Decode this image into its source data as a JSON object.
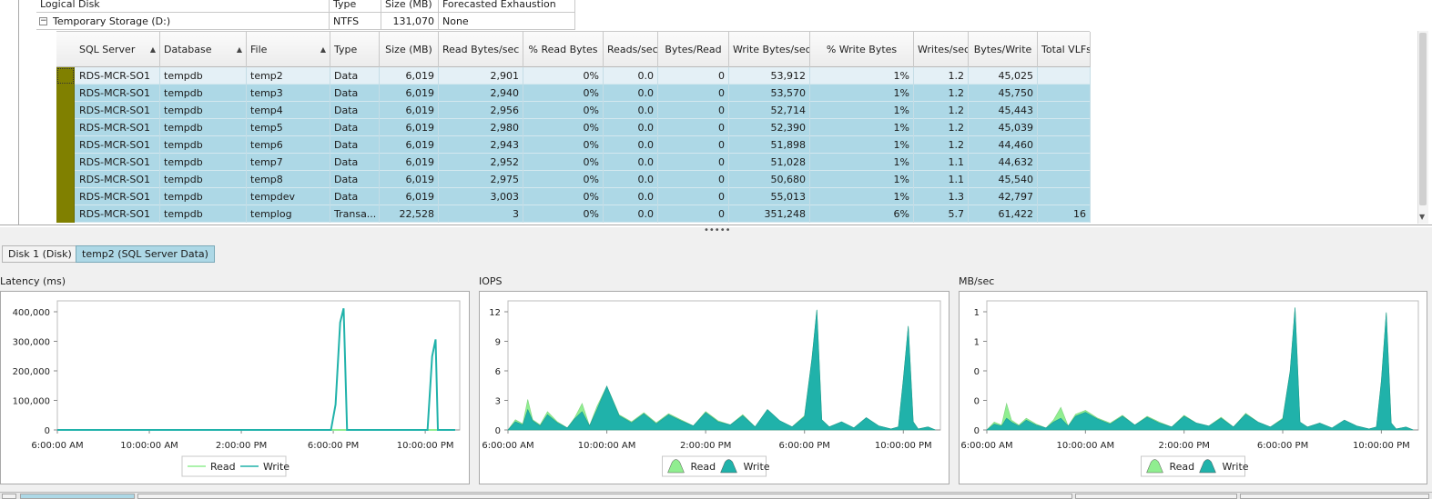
{
  "outer_grid": {
    "headers": [
      "Logical Disk",
      "Type",
      "Size (MB)",
      "Forecasted Exhaustion"
    ],
    "group_row": {
      "expander": "⊟",
      "name": "Temporary Storage (D:)",
      "type": "NTFS",
      "size": "131,070",
      "forecast": "None"
    }
  },
  "inner_grid": {
    "headers": [
      "SQL Server",
      "Database",
      "File",
      "Type",
      "Size (MB)",
      "Read Bytes/sec",
      "% Read Bytes",
      "Reads/sec",
      "Bytes/Read",
      "Write Bytes/sec",
      "% Write Bytes",
      "Writes/sec",
      "Bytes/Write",
      "Total VLFs"
    ],
    "swatch_color": "#808000",
    "rows": [
      [
        "RDS-MCR-SO1",
        "tempdb",
        "temp2",
        "Data",
        "6,019",
        "2,901",
        "0%",
        "0.0",
        "0",
        "53,912",
        "1%",
        "1.2",
        "45,025",
        ""
      ],
      [
        "RDS-MCR-SO1",
        "tempdb",
        "temp3",
        "Data",
        "6,019",
        "2,940",
        "0%",
        "0.0",
        "0",
        "53,570",
        "1%",
        "1.2",
        "45,750",
        ""
      ],
      [
        "RDS-MCR-SO1",
        "tempdb",
        "temp4",
        "Data",
        "6,019",
        "2,956",
        "0%",
        "0.0",
        "0",
        "52,714",
        "1%",
        "1.2",
        "45,443",
        ""
      ],
      [
        "RDS-MCR-SO1",
        "tempdb",
        "temp5",
        "Data",
        "6,019",
        "2,980",
        "0%",
        "0.0",
        "0",
        "52,390",
        "1%",
        "1.2",
        "45,039",
        ""
      ],
      [
        "RDS-MCR-SO1",
        "tempdb",
        "temp6",
        "Data",
        "6,019",
        "2,943",
        "0%",
        "0.0",
        "0",
        "51,898",
        "1%",
        "1.2",
        "44,460",
        ""
      ],
      [
        "RDS-MCR-SO1",
        "tempdb",
        "temp7",
        "Data",
        "6,019",
        "2,952",
        "0%",
        "0.0",
        "0",
        "51,028",
        "1%",
        "1.1",
        "44,632",
        ""
      ],
      [
        "RDS-MCR-SO1",
        "tempdb",
        "temp8",
        "Data",
        "6,019",
        "2,975",
        "0%",
        "0.0",
        "0",
        "50,680",
        "1%",
        "1.1",
        "45,540",
        ""
      ],
      [
        "RDS-MCR-SO1",
        "tempdb",
        "tempdev",
        "Data",
        "6,019",
        "3,003",
        "0%",
        "0.0",
        "0",
        "55,013",
        "1%",
        "1.3",
        "42,797",
        ""
      ],
      [
        "RDS-MCR-SO1",
        "tempdb",
        "templog",
        "Transa...",
        "22,528",
        "3",
        "0%",
        "0.0",
        "0",
        "351,248",
        "6%",
        "5.7",
        "61,422",
        "16"
      ]
    ]
  },
  "splitter_grip": "•••••",
  "tabs": [
    {
      "label": "Disk 1 (Disk)",
      "active": false
    },
    {
      "label": "temp2 (SQL Server Data)",
      "active": true
    }
  ],
  "colors": {
    "selection": "#add8e6",
    "read_fill": "#90ee90",
    "write_fill": "#20b2aa",
    "write_line": "#20b2aa",
    "read_line": "#90ee90"
  },
  "chart_data": [
    {
      "type": "line",
      "title": "Latency (ms)",
      "x_ticks": [
        "6:00:00 AM",
        "10:00:00 AM",
        "2:00:00 PM",
        "6:00:00 PM",
        "10:00:00 PM"
      ],
      "y_ticks": [
        "0",
        "100,000",
        "200,000",
        "300,000",
        "400,000"
      ],
      "ylim": [
        0,
        450000
      ],
      "x_hours": [
        6,
        23.5
      ],
      "legend": [
        "Read",
        "Write"
      ],
      "series": [
        {
          "name": "Read",
          "x": [
            6,
            23.3
          ],
          "values": [
            0,
            0
          ]
        },
        {
          "name": "Write",
          "x": [
            6,
            17.9,
            18.1,
            18.3,
            18.45,
            18.6,
            18.75,
            22,
            22.1,
            22.3,
            22.45,
            22.55,
            22.7,
            23.3
          ],
          "values": [
            0,
            0,
            90000,
            380000,
            430000,
            0,
            0,
            0,
            0,
            260000,
            320000,
            0,
            0,
            0
          ]
        }
      ]
    },
    {
      "type": "area",
      "title": "IOPS",
      "x_ticks": [
        "6:00:00 AM",
        "10:00:00 AM",
        "2:00:00 PM",
        "6:00:00 PM",
        "10:00:00 PM"
      ],
      "y_ticks": [
        "0",
        "3",
        "6",
        "9",
        "12"
      ],
      "ylim": [
        0,
        12.5
      ],
      "x_hours": [
        6,
        23.5
      ],
      "legend": [
        "Read",
        "Write"
      ],
      "series": [
        {
          "name": "Read",
          "x": [
            6,
            6.3,
            6.6,
            6.8,
            7.0,
            7.3,
            7.6,
            8,
            8.4,
            8.7,
            9.0,
            9.3,
            9.6,
            10,
            10.5,
            11,
            11.5,
            12,
            12.5,
            13,
            13.5,
            14,
            14.5,
            15,
            15.5,
            16,
            16.5,
            17,
            17.5,
            18,
            18.3,
            18.5,
            18.7,
            19,
            19.5,
            20,
            20.5,
            21,
            21.5,
            21.8,
            22,
            22.2,
            22.4,
            22.6,
            23,
            23.3
          ],
          "values": [
            0,
            1.0,
            0.6,
            3.0,
            1.0,
            0.5,
            1.8,
            0.8,
            0.2,
            1.2,
            2.6,
            0.4,
            2.3,
            4.3,
            1.5,
            0.8,
            1.7,
            0.7,
            1.6,
            1.0,
            0.4,
            1.8,
            0.9,
            0.5,
            1.5,
            0.3,
            2.0,
            0.9,
            0.3,
            1.4,
            7.0,
            11.8,
            1.0,
            0.3,
            0.8,
            0.2,
            1.2,
            0.4,
            0.1,
            0.3,
            5.0,
            10.2,
            0.8,
            0.1,
            0.3,
            0
          ]
        },
        {
          "name": "Write",
          "x": [
            6,
            6.3,
            6.6,
            6.8,
            7.0,
            7.3,
            7.6,
            8,
            8.4,
            8.7,
            9.0,
            9.3,
            9.6,
            10,
            10.5,
            11,
            11.5,
            12,
            12.5,
            13,
            13.5,
            14,
            14.5,
            15,
            15.5,
            16,
            16.5,
            17,
            17.5,
            18,
            18.3,
            18.5,
            18.7,
            19,
            19.5,
            20,
            20.5,
            21,
            21.5,
            21.8,
            22,
            22.2,
            22.4,
            22.6,
            23,
            23.3
          ],
          "values": [
            0,
            0.8,
            0.5,
            2.0,
            0.9,
            0.4,
            1.5,
            0.7,
            0.2,
            1.1,
            1.8,
            0.4,
            2.0,
            4.3,
            1.4,
            0.7,
            1.6,
            0.6,
            1.5,
            0.9,
            0.4,
            1.7,
            0.8,
            0.5,
            1.4,
            0.3,
            2.0,
            0.9,
            0.3,
            1.3,
            7.0,
            11.8,
            1.0,
            0.3,
            0.8,
            0.2,
            1.2,
            0.4,
            0.1,
            0.3,
            5.0,
            10.2,
            0.8,
            0.1,
            0.3,
            0
          ]
        }
      ]
    },
    {
      "type": "area",
      "title": "MB/sec",
      "x_ticks": [
        "6:00:00 AM",
        "10:00:00 AM",
        "2:00:00 PM",
        "6:00:00 PM",
        "10:00:00 PM"
      ],
      "y_ticks": [
        "0",
        "0",
        "0",
        "1",
        "1"
      ],
      "ylim": [
        0,
        1.3
      ],
      "x_hours": [
        6,
        23.5
      ],
      "legend": [
        "Read",
        "Write"
      ],
      "series": [
        {
          "name": "Read",
          "x": [
            6,
            6.3,
            6.6,
            6.8,
            7.0,
            7.3,
            7.6,
            8,
            8.4,
            8.7,
            9.0,
            9.3,
            9.6,
            10,
            10.5,
            11,
            11.5,
            12,
            12.5,
            13,
            13.5,
            14,
            14.5,
            15,
            15.5,
            16,
            16.5,
            17,
            17.5,
            18,
            18.3,
            18.5,
            18.7,
            19,
            19.5,
            20,
            20.5,
            21,
            21.5,
            21.8,
            22,
            22.2,
            22.4,
            22.6,
            23,
            23.3
          ],
          "values": [
            0,
            0.08,
            0.05,
            0.27,
            0.1,
            0.05,
            0.12,
            0.06,
            0.02,
            0.1,
            0.23,
            0.04,
            0.16,
            0.2,
            0.12,
            0.07,
            0.15,
            0.05,
            0.14,
            0.08,
            0.03,
            0.15,
            0.07,
            0.04,
            0.13,
            0.03,
            0.17,
            0.08,
            0.03,
            0.12,
            0.6,
            1.25,
            0.08,
            0.03,
            0.07,
            0.02,
            0.1,
            0.04,
            0.01,
            0.03,
            0.5,
            1.2,
            0.07,
            0.01,
            0.03,
            0
          ]
        },
        {
          "name": "Write",
          "x": [
            6,
            6.3,
            6.6,
            6.8,
            7.0,
            7.3,
            7.6,
            8,
            8.4,
            8.7,
            9.0,
            9.3,
            9.6,
            10,
            10.5,
            11,
            11.5,
            12,
            12.5,
            13,
            13.5,
            14,
            14.5,
            15,
            15.5,
            16,
            16.5,
            17,
            17.5,
            18,
            18.3,
            18.5,
            18.7,
            19,
            19.5,
            20,
            20.5,
            21,
            21.5,
            21.8,
            22,
            22.2,
            22.4,
            22.6,
            23,
            23.3
          ],
          "values": [
            0,
            0.06,
            0.04,
            0.12,
            0.08,
            0.04,
            0.1,
            0.05,
            0.02,
            0.08,
            0.12,
            0.04,
            0.14,
            0.18,
            0.11,
            0.06,
            0.14,
            0.05,
            0.13,
            0.07,
            0.03,
            0.14,
            0.07,
            0.04,
            0.12,
            0.03,
            0.16,
            0.08,
            0.03,
            0.11,
            0.6,
            1.25,
            0.08,
            0.03,
            0.07,
            0.02,
            0.1,
            0.04,
            0.01,
            0.03,
            0.5,
            1.2,
            0.07,
            0.01,
            0.03,
            0
          ]
        }
      ]
    }
  ]
}
